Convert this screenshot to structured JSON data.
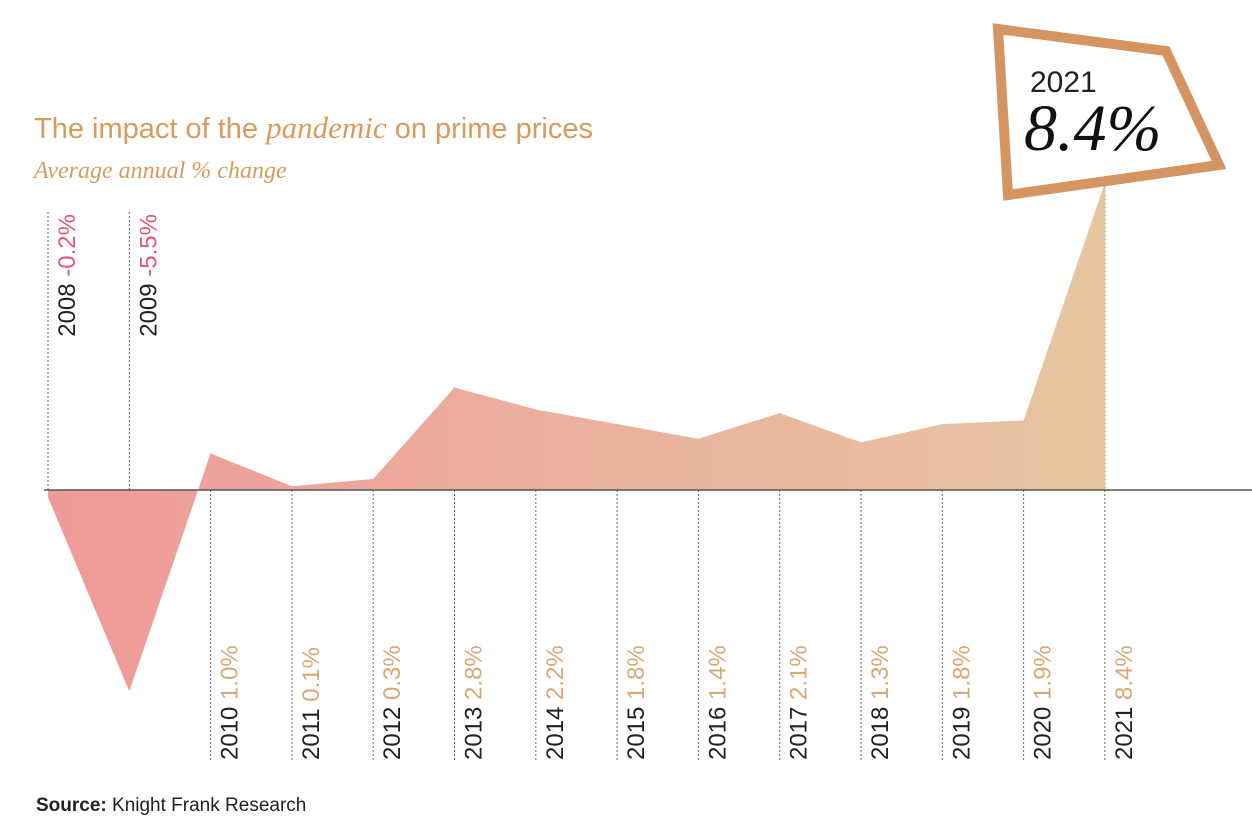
{
  "chart_data": {
    "type": "area",
    "title": {
      "before": "The impact of the ",
      "emphasis": "pandemic",
      "after": " on prime prices"
    },
    "subtitle": "Average annual % change",
    "unit": "%",
    "years": [
      "2008",
      "2009",
      "2010",
      "2011",
      "2012",
      "2013",
      "2014",
      "2015",
      "2016",
      "2017",
      "2018",
      "2019",
      "2020",
      "2021"
    ],
    "values": [
      -0.2,
      -5.5,
      1.0,
      0.1,
      0.3,
      2.8,
      2.2,
      1.8,
      1.4,
      2.1,
      1.3,
      1.8,
      1.9,
      8.4
    ],
    "value_labels": [
      "-0.2%",
      "-5.5%",
      "1.0%",
      "0.1%",
      "0.3%",
      "2.8%",
      "2.2%",
      "1.8%",
      "1.4%",
      "2.1%",
      "1.3%",
      "1.8%",
      "1.9%",
      "8.4%"
    ],
    "gradient_colors": [
      "#ef9a9a",
      "#e6c6a0"
    ],
    "colors": {
      "title": "#d79b5e",
      "negative_label": "#e05a70",
      "positive_label": "#d9a877",
      "year_label": "#222222",
      "callout_border": "#d49562"
    },
    "callout": {
      "year": "2021",
      "value": "8.4%"
    },
    "source": {
      "prefix": "Source:",
      "text": " Knight Frank Research"
    }
  }
}
